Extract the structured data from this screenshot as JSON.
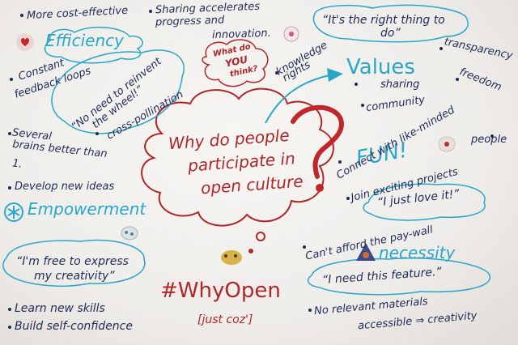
{
  "center": {
    "line1": "Why do people",
    "line2": "participate in",
    "line3": "open culture"
  },
  "question_mark": "?",
  "bubble_small": {
    "line1": "What do",
    "line2": "YOU",
    "line3": "think?"
  },
  "headings": {
    "efficiency": "Efficiency",
    "values": "Values",
    "fun": "FUN!",
    "empowerment": "Empowerment",
    "necessity": "necessity"
  },
  "left": {
    "cost": "More cost-effective",
    "feedback1": "Constant",
    "feedback2": "feedback loops",
    "reinvent1": "“No need to reinvent",
    "reinvent2": "the wheel!”",
    "cross": "cross-pollination",
    "brains1": "Several",
    "brains2": "brains better than",
    "brains3": "1.",
    "ideas": "Develop new ideas"
  },
  "top": {
    "sharing1": "Sharing accelerates",
    "sharing2": "progress and",
    "sharing3": "innovation.",
    "knowledge1": "knowledge",
    "knowledge2": "rights"
  },
  "right": {
    "rightthing1": "“It's the right thing to",
    "rightthing2": "do”",
    "transparency": "transparency",
    "freedom": "freedom",
    "sharing": "sharing",
    "community": "community",
    "connect": "Connect with like-minded",
    "people": "people",
    "projects": "Join exciting projects",
    "love": "“I just love it!”",
    "paywall": "Can't afford the pay-wall",
    "feature": "“I need this feature.”",
    "materials1": "No relevant materials",
    "materials2": "accessible ⇒ creativity"
  },
  "bottom_left": {
    "express1": "“I'm free to express",
    "express2": "my creativity”",
    "skills": "Learn new skills",
    "confidence": "Build self-confidence"
  },
  "hashtag": "#WhyOpen",
  "coz": "[just coz']",
  "colors": {
    "ink": "#1f2a57",
    "teal": "#2aa6c9",
    "red": "#b0262a",
    "board": "#efedea"
  },
  "icons": [
    "heart-sticker-icon",
    "flower-sticker-icon",
    "bird-sticker-icon",
    "heart-sticker-icon",
    "bunny-sticker-icon",
    "bear-sticker-icon",
    "triangle-logo-icon",
    "asterisk-icon",
    "arrow-icon"
  ]
}
